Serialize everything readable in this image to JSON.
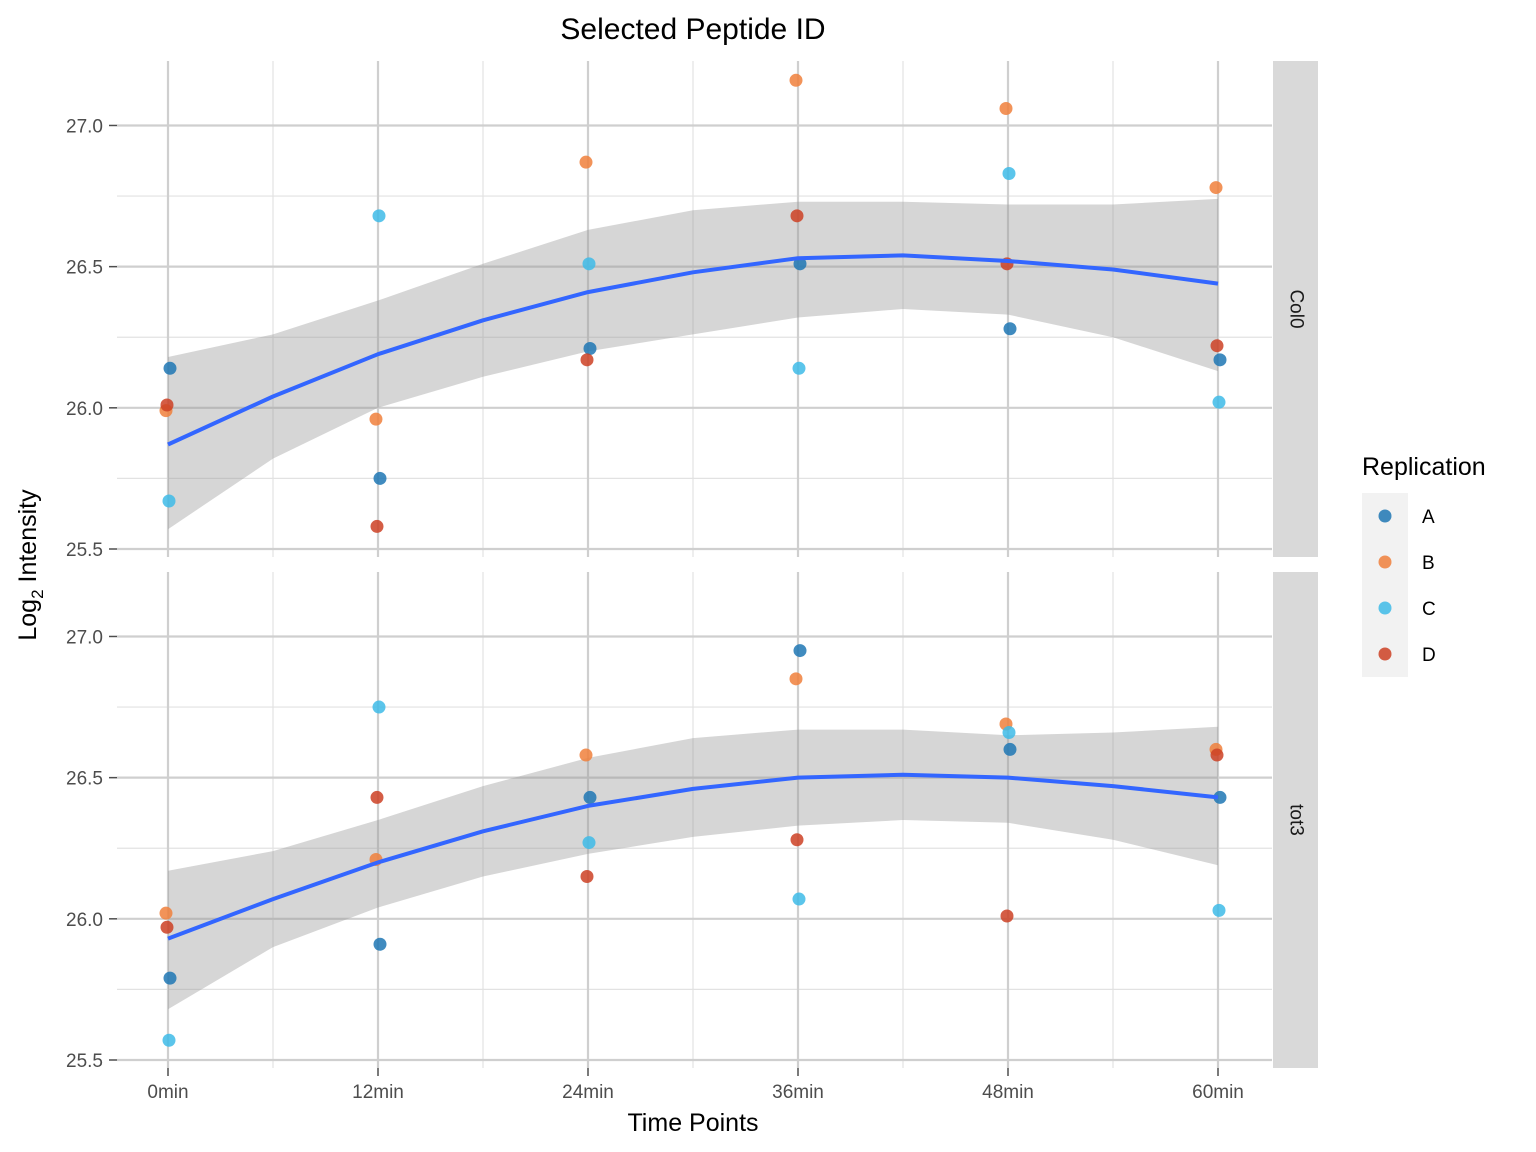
{
  "chart_data": {
    "type": "scatter",
    "title": "Selected Peptide ID",
    "xlabel": "Time Points",
    "ylabel_main": "Log",
    "ylabel_sub": "2",
    "ylabel_rest": " Intensity",
    "categories": [
      "0min",
      "12min",
      "24min",
      "36min",
      "48min",
      "60min"
    ],
    "ylim": [
      25.5,
      27.2
    ],
    "yticks": [
      25.5,
      26.0,
      26.5,
      27.0
    ],
    "ytick_labels": [
      "25.5",
      "26.0",
      "26.5",
      "27.0"
    ],
    "grid": true,
    "legend": {
      "title": "Replication",
      "position": "right",
      "entries": [
        {
          "name": "A",
          "color": "#1f77b4"
        },
        {
          "name": "B",
          "color": "#f0803c"
        },
        {
          "name": "C",
          "color": "#3ebbe8"
        },
        {
          "name": "D",
          "color": "#cc4125"
        }
      ]
    },
    "smooth_color": "#3366ff",
    "ribbon_color": "#999999",
    "facets": [
      {
        "label": "Col0",
        "points": [
          {
            "rep": "A",
            "values": [
              26.14,
              25.75,
              26.21,
              26.51,
              26.28,
              26.17
            ]
          },
          {
            "rep": "B",
            "values": [
              25.99,
              25.96,
              26.87,
              27.16,
              27.06,
              26.78
            ]
          },
          {
            "rep": "C",
            "values": [
              25.67,
              26.68,
              26.51,
              26.14,
              26.83,
              26.02
            ]
          },
          {
            "rep": "D",
            "values": [
              26.01,
              25.58,
              26.17,
              26.68,
              26.51,
              26.22
            ]
          }
        ],
        "smooth": [
          {
            "x": 0,
            "y": 25.87,
            "lo": 25.57,
            "hi": 26.18
          },
          {
            "x": 0.5,
            "y": 26.04,
            "lo": 25.82,
            "hi": 26.26
          },
          {
            "x": 1,
            "y": 26.19,
            "lo": 26.0,
            "hi": 26.38
          },
          {
            "x": 1.5,
            "y": 26.31,
            "lo": 26.11,
            "hi": 26.51
          },
          {
            "x": 2,
            "y": 26.41,
            "lo": 26.2,
            "hi": 26.63
          },
          {
            "x": 2.5,
            "y": 26.48,
            "lo": 26.26,
            "hi": 26.7
          },
          {
            "x": 3,
            "y": 26.53,
            "lo": 26.32,
            "hi": 26.73
          },
          {
            "x": 3.5,
            "y": 26.54,
            "lo": 26.35,
            "hi": 26.73
          },
          {
            "x": 4,
            "y": 26.52,
            "lo": 26.33,
            "hi": 26.72
          },
          {
            "x": 4.5,
            "y": 26.49,
            "lo": 26.25,
            "hi": 26.72
          },
          {
            "x": 5,
            "y": 26.44,
            "lo": 26.13,
            "hi": 26.74
          }
        ]
      },
      {
        "label": "tot3",
        "points": [
          {
            "rep": "A",
            "values": [
              25.79,
              25.91,
              26.43,
              26.95,
              26.6,
              26.43
            ]
          },
          {
            "rep": "B",
            "values": [
              26.02,
              26.21,
              26.58,
              26.85,
              26.69,
              26.6
            ]
          },
          {
            "rep": "C",
            "values": [
              25.57,
              26.75,
              26.27,
              26.07,
              26.66,
              26.03
            ]
          },
          {
            "rep": "D",
            "values": [
              25.97,
              26.43,
              26.15,
              26.28,
              26.01,
              26.58
            ]
          }
        ],
        "smooth": [
          {
            "x": 0,
            "y": 25.93,
            "lo": 25.68,
            "hi": 26.17
          },
          {
            "x": 0.5,
            "y": 26.07,
            "lo": 25.9,
            "hi": 26.24
          },
          {
            "x": 1,
            "y": 26.2,
            "lo": 26.04,
            "hi": 26.35
          },
          {
            "x": 1.5,
            "y": 26.31,
            "lo": 26.15,
            "hi": 26.47
          },
          {
            "x": 2,
            "y": 26.4,
            "lo": 26.23,
            "hi": 26.57
          },
          {
            "x": 2.5,
            "y": 26.46,
            "lo": 26.29,
            "hi": 26.64
          },
          {
            "x": 3,
            "y": 26.5,
            "lo": 26.33,
            "hi": 26.67
          },
          {
            "x": 3.5,
            "y": 26.51,
            "lo": 26.35,
            "hi": 26.67
          },
          {
            "x": 4,
            "y": 26.5,
            "lo": 26.34,
            "hi": 26.65
          },
          {
            "x": 4.5,
            "y": 26.47,
            "lo": 26.28,
            "hi": 26.66
          },
          {
            "x": 5,
            "y": 26.43,
            "lo": 26.19,
            "hi": 26.68
          }
        ]
      }
    ]
  }
}
